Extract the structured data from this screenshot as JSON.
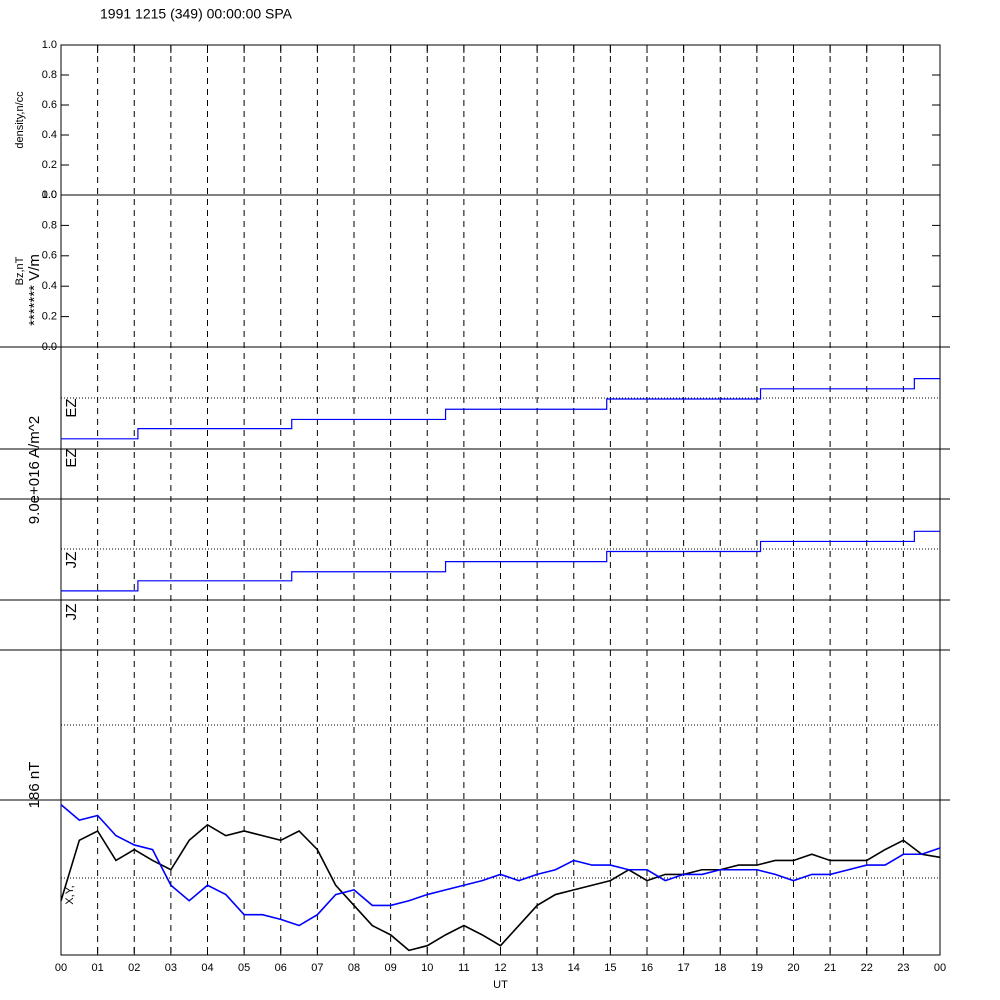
{
  "chart_data": [
    {
      "type": "empty",
      "title": "1991 1215 (349) 00:00:00 SPA",
      "ylabel": "density,n/cc",
      "ylim": [
        0,
        1
      ],
      "yticks": [
        {
          "value": 0,
          "label": "0.0"
        },
        {
          "value": 0.2,
          "label": "0.2"
        },
        {
          "value": 0.4,
          "label": "0.4"
        },
        {
          "value": 0.6,
          "label": "0.6"
        },
        {
          "value": 0.8,
          "label": "0.8"
        },
        {
          "value": 1,
          "label": "1.0"
        }
      ]
    },
    {
      "type": "empty",
      "ylabel": "Bz,nT",
      "ylim": [
        0,
        1
      ],
      "yticks": [
        {
          "value": 0,
          "label": "0.0"
        },
        {
          "value": 0.2,
          "label": "0.2"
        },
        {
          "value": 0.4,
          "label": "0.4"
        },
        {
          "value": 0.6,
          "label": "0.6"
        },
        {
          "value": 0.8,
          "label": "0.8"
        },
        {
          "value": 1,
          "label": "1.0"
        }
      ]
    },
    {
      "type": "step",
      "ylabel": "******* V/m",
      "labels": [
        "EZ",
        "EZ"
      ],
      "ylim": [
        0,
        1
      ],
      "x": [
        0,
        2.1,
        6.3,
        10.5,
        14.9,
        19.1,
        23.3,
        24
      ],
      "series": [
        {
          "color": "#0000ff",
          "values": [
            0.1,
            0.2,
            0.29,
            0.39,
            0.49,
            0.59,
            0.69,
            0.69
          ]
        }
      ]
    },
    {
      "type": "step",
      "ylabel": "9.0e+016 A/m^2",
      "labels": [
        "JZ",
        "JZ"
      ],
      "ylim": [
        0,
        1
      ],
      "x": [
        0,
        2.1,
        6.3,
        10.5,
        14.9,
        19.1,
        23.3,
        24
      ],
      "series": [
        {
          "color": "#0000ff",
          "values": [
            0.09,
            0.19,
            0.28,
            0.38,
            0.48,
            0.58,
            0.68,
            0.68
          ]
        }
      ]
    },
    {
      "type": "line",
      "ylabel": "186 nT",
      "labels": [
        "X,Y,"
      ],
      "xlabel": "UT",
      "ylim": [
        0,
        1
      ],
      "x": [
        0,
        0.5,
        1,
        1.5,
        2,
        2.5,
        3,
        3.5,
        4,
        4.5,
        5,
        5.5,
        6,
        6.5,
        7,
        7.5,
        8,
        8.5,
        9,
        9.5,
        10,
        10.5,
        11,
        11.5,
        12,
        12.5,
        13,
        13.5,
        14,
        14.5,
        15,
        15.5,
        16,
        16.5,
        17,
        17.5,
        18,
        18.5,
        19,
        19.5,
        20,
        20.5,
        21,
        21.5,
        22,
        22.5,
        23,
        23.5,
        24
      ],
      "xlim": [
        0,
        24
      ],
      "xticks": [
        {
          "value": 0,
          "label": "00"
        },
        {
          "value": 1,
          "label": "01"
        },
        {
          "value": 2,
          "label": "02"
        },
        {
          "value": 3,
          "label": "03"
        },
        {
          "value": 4,
          "label": "04"
        },
        {
          "value": 5,
          "label": "05"
        },
        {
          "value": 6,
          "label": "06"
        },
        {
          "value": 7,
          "label": "07"
        },
        {
          "value": 8,
          "label": "08"
        },
        {
          "value": 9,
          "label": "09"
        },
        {
          "value": 10,
          "label": "10"
        },
        {
          "value": 11,
          "label": "11"
        },
        {
          "value": 12,
          "label": "12"
        },
        {
          "value": 13,
          "label": "13"
        },
        {
          "value": 14,
          "label": "14"
        },
        {
          "value": 15,
          "label": "15"
        },
        {
          "value": 16,
          "label": "16"
        },
        {
          "value": 17,
          "label": "17"
        },
        {
          "value": 18,
          "label": "18"
        },
        {
          "value": 19,
          "label": "19"
        },
        {
          "value": 20,
          "label": "20"
        },
        {
          "value": 21,
          "label": "21"
        },
        {
          "value": 22,
          "label": "22"
        },
        {
          "value": 23,
          "label": "23"
        },
        {
          "value": 24,
          "label": "00"
        }
      ],
      "series": [
        {
          "color": "#000000",
          "values": [
            0.35,
            0.74,
            0.8,
            0.61,
            0.68,
            0.61,
            0.55,
            0.74,
            0.84,
            0.77,
            0.8,
            0.77,
            0.74,
            0.8,
            0.68,
            0.45,
            0.32,
            0.19,
            0.13,
            0.03,
            0.06,
            0.13,
            0.19,
            0.13,
            0.06,
            0.19,
            0.32,
            0.39,
            0.42,
            0.45,
            0.48,
            0.55,
            0.48,
            0.52,
            0.52,
            0.55,
            0.55,
            0.58,
            0.58,
            0.61,
            0.61,
            0.65,
            0.61,
            0.61,
            0.61,
            0.68,
            0.74,
            0.65,
            0.63
          ]
        },
        {
          "color": "#0000ff",
          "values": [
            0.97,
            0.87,
            0.9,
            0.77,
            0.71,
            0.68,
            0.45,
            0.35,
            0.45,
            0.39,
            0.26,
            0.26,
            0.23,
            0.19,
            0.26,
            0.39,
            0.42,
            0.32,
            0.32,
            0.35,
            0.39,
            0.42,
            0.45,
            0.48,
            0.52,
            0.48,
            0.52,
            0.55,
            0.61,
            0.58,
            0.58,
            0.55,
            0.55,
            0.48,
            0.52,
            0.52,
            0.55,
            0.55,
            0.55,
            0.52,
            0.48,
            0.52,
            0.52,
            0.55,
            0.58,
            0.58,
            0.65,
            0.65,
            0.69
          ]
        }
      ]
    }
  ]
}
